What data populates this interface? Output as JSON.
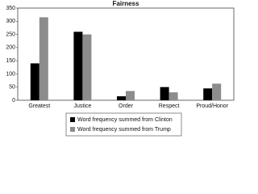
{
  "chart_data": {
    "type": "bar",
    "title": "Fairness",
    "categories": [
      "Greatest",
      "Justice",
      "Order",
      "Respect",
      "Proud/Honor"
    ],
    "series": [
      {
        "name": "Word frequency summed from Clinton",
        "color": "#000000",
        "values": [
          140,
          260,
          15,
          50,
          45
        ]
      },
      {
        "name": "Word frequency summed from Trump",
        "color": "#8c8c8c",
        "values": [
          315,
          250,
          35,
          30,
          63
        ]
      }
    ],
    "ylim": [
      0,
      350
    ],
    "yticks": [
      0,
      50,
      100,
      150,
      200,
      250,
      300,
      350
    ],
    "grid": false,
    "legend": "bottom"
  }
}
